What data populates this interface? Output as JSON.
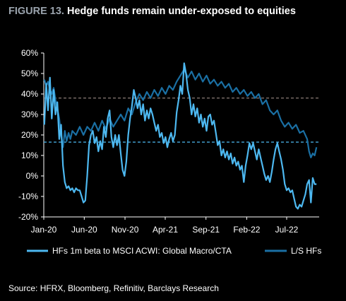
{
  "header": {
    "figure_label": "FIGURE 13.",
    "title": "Hedge funds remain under-exposed to equities"
  },
  "source": "Source: HFRX, Bloomberg, Refinitiv, Barclays Research",
  "colors": {
    "background": "#000000",
    "macro_series": "#4db8f0",
    "ls_series": "#1a6fa3",
    "macro_avg_line": "#4db8f0",
    "ls_avg_line": "#9b8b84",
    "axis": "#ffffff"
  },
  "chart_data": {
    "type": "line",
    "title": "Hedge funds remain under-exposed to equities",
    "xlabel": "",
    "ylabel": "",
    "ylim": [
      -0.2,
      0.6
    ],
    "y_ticks": [
      -0.2,
      -0.1,
      0.0,
      0.1,
      0.2,
      0.3,
      0.4,
      0.5,
      0.6
    ],
    "y_tick_labels": [
      "-20%",
      "-10%",
      "0%",
      "10%",
      "20%",
      "30%",
      "40%",
      "50%",
      "60%"
    ],
    "x_range": [
      "2020-01-01",
      "2022-10-31"
    ],
    "x_ticks": [
      "2020-01-01",
      "2020-06-01",
      "2020-11-01",
      "2021-04-01",
      "2021-09-01",
      "2022-02-01",
      "2022-07-01"
    ],
    "x_tick_labels": [
      "Jan-20",
      "Jun-20",
      "Nov-20",
      "Apr-21",
      "Sep-21",
      "Feb-22",
      "Jul-22"
    ],
    "grid": false,
    "legend": "bottom",
    "reference_lines": [
      {
        "value": 0.38,
        "style": "dashed",
        "color": "#9b8b84"
      },
      {
        "value": 0.165,
        "style": "dashed",
        "color": "#4db8f0"
      }
    ],
    "series": [
      {
        "name": "HFs 1m beta to MSCI ACWI: Global Macro/CTA",
        "color": "#4db8f0",
        "points": [
          [
            "2020-01-03",
            0.25
          ],
          [
            "2020-01-10",
            0.45
          ],
          [
            "2020-01-17",
            0.32
          ],
          [
            "2020-01-24",
            0.48
          ],
          [
            "2020-01-31",
            0.28
          ],
          [
            "2020-02-07",
            0.42
          ],
          [
            "2020-02-14",
            0.3
          ],
          [
            "2020-02-21",
            0.36
          ],
          [
            "2020-02-28",
            0.18
          ],
          [
            "2020-03-06",
            0.25
          ],
          [
            "2020-03-13",
            0.05
          ],
          [
            "2020-03-20",
            -0.03
          ],
          [
            "2020-03-27",
            -0.06
          ],
          [
            "2020-04-03",
            -0.05
          ],
          [
            "2020-04-10",
            -0.07
          ],
          [
            "2020-04-17",
            -0.06
          ],
          [
            "2020-04-24",
            -0.08
          ],
          [
            "2020-05-01",
            -0.06
          ],
          [
            "2020-05-08",
            -0.07
          ],
          [
            "2020-05-15",
            -0.07
          ],
          [
            "2020-05-22",
            -0.1
          ],
          [
            "2020-05-29",
            -0.13
          ],
          [
            "2020-06-05",
            -0.12
          ],
          [
            "2020-06-12",
            0.0
          ],
          [
            "2020-06-19",
            0.15
          ],
          [
            "2020-06-26",
            0.2
          ],
          [
            "2020-07-03",
            0.22
          ],
          [
            "2020-07-10",
            0.16
          ],
          [
            "2020-07-17",
            0.19
          ],
          [
            "2020-07-24",
            0.12
          ],
          [
            "2020-07-31",
            0.17
          ],
          [
            "2020-08-07",
            0.13
          ],
          [
            "2020-08-14",
            0.24
          ],
          [
            "2020-08-21",
            0.19
          ],
          [
            "2020-08-28",
            0.28
          ],
          [
            "2020-09-04",
            0.32
          ],
          [
            "2020-09-11",
            0.19
          ],
          [
            "2020-09-18",
            0.14
          ],
          [
            "2020-09-25",
            0.2
          ],
          [
            "2020-10-02",
            0.15
          ],
          [
            "2020-10-09",
            0.2
          ],
          [
            "2020-10-16",
            0.11
          ],
          [
            "2020-10-23",
            0.03
          ],
          [
            "2020-10-30",
            0.0
          ],
          [
            "2020-11-06",
            0.07
          ],
          [
            "2020-11-13",
            0.2
          ],
          [
            "2020-11-20",
            0.28
          ],
          [
            "2020-11-27",
            0.34
          ],
          [
            "2020-12-04",
            0.42
          ],
          [
            "2020-12-11",
            0.38
          ],
          [
            "2020-12-18",
            0.33
          ],
          [
            "2020-12-25",
            0.37
          ],
          [
            "2021-01-01",
            0.3
          ],
          [
            "2021-01-08",
            0.35
          ],
          [
            "2021-01-15",
            0.27
          ],
          [
            "2021-01-22",
            0.32
          ],
          [
            "2021-01-29",
            0.28
          ],
          [
            "2021-02-05",
            0.33
          ],
          [
            "2021-02-12",
            0.3
          ],
          [
            "2021-02-19",
            0.26
          ],
          [
            "2021-02-26",
            0.22
          ],
          [
            "2021-03-05",
            0.25
          ],
          [
            "2021-03-12",
            0.19
          ],
          [
            "2021-03-19",
            0.21
          ],
          [
            "2021-03-26",
            0.16
          ],
          [
            "2021-04-02",
            0.19
          ],
          [
            "2021-04-09",
            0.14
          ],
          [
            "2021-04-16",
            0.18
          ],
          [
            "2021-04-23",
            0.21
          ],
          [
            "2021-04-30",
            0.17
          ],
          [
            "2021-05-07",
            0.2
          ],
          [
            "2021-05-14",
            0.31
          ],
          [
            "2021-05-21",
            0.37
          ],
          [
            "2021-05-28",
            0.44
          ],
          [
            "2021-06-04",
            0.4
          ],
          [
            "2021-06-11",
            0.55
          ],
          [
            "2021-06-18",
            0.5
          ],
          [
            "2021-06-25",
            0.42
          ],
          [
            "2021-07-02",
            0.38
          ],
          [
            "2021-07-09",
            0.3
          ],
          [
            "2021-07-16",
            0.35
          ],
          [
            "2021-07-23",
            0.29
          ],
          [
            "2021-07-30",
            0.33
          ],
          [
            "2021-08-06",
            0.26
          ],
          [
            "2021-08-13",
            0.3
          ],
          [
            "2021-08-20",
            0.24
          ],
          [
            "2021-08-27",
            0.28
          ],
          [
            "2021-09-03",
            0.22
          ],
          [
            "2021-09-10",
            0.29
          ],
          [
            "2021-09-17",
            0.3
          ],
          [
            "2021-09-24",
            0.25
          ],
          [
            "2021-10-01",
            0.27
          ],
          [
            "2021-10-08",
            0.21
          ],
          [
            "2021-10-15",
            0.15
          ],
          [
            "2021-10-22",
            0.17
          ],
          [
            "2021-10-29",
            0.1
          ],
          [
            "2021-11-05",
            0.13
          ],
          [
            "2021-11-12",
            0.09
          ],
          [
            "2021-11-19",
            0.12
          ],
          [
            "2021-11-26",
            0.08
          ],
          [
            "2021-12-03",
            0.11
          ],
          [
            "2021-12-10",
            0.06
          ],
          [
            "2021-12-17",
            0.09
          ],
          [
            "2021-12-24",
            0.05
          ],
          [
            "2021-12-31",
            0.07
          ],
          [
            "2022-01-07",
            0.03
          ],
          [
            "2022-01-14",
            0.05
          ],
          [
            "2022-01-21",
            -0.03
          ],
          [
            "2022-01-28",
            0.05
          ],
          [
            "2022-02-04",
            0.1
          ],
          [
            "2022-02-11",
            0.16
          ],
          [
            "2022-02-18",
            0.13
          ],
          [
            "2022-02-25",
            0.16
          ],
          [
            "2022-03-04",
            0.12
          ],
          [
            "2022-03-11",
            0.08
          ],
          [
            "2022-03-18",
            0.13
          ],
          [
            "2022-03-25",
            0.09
          ],
          [
            "2022-04-01",
            0.05
          ],
          [
            "2022-04-08",
            0.01
          ],
          [
            "2022-04-15",
            -0.02
          ],
          [
            "2022-04-22",
            0.0
          ],
          [
            "2022-04-29",
            -0.03
          ],
          [
            "2022-05-06",
            0.02
          ],
          [
            "2022-05-13",
            0.08
          ],
          [
            "2022-05-20",
            0.13
          ],
          [
            "2022-05-27",
            0.16
          ],
          [
            "2022-06-03",
            0.12
          ],
          [
            "2022-06-10",
            0.08
          ],
          [
            "2022-06-17",
            0.03
          ],
          [
            "2022-06-24",
            -0.04
          ],
          [
            "2022-07-01",
            -0.07
          ],
          [
            "2022-07-08",
            -0.06
          ],
          [
            "2022-07-15",
            -0.08
          ],
          [
            "2022-07-22",
            -0.07
          ],
          [
            "2022-07-29",
            -0.11
          ],
          [
            "2022-08-05",
            -0.15
          ],
          [
            "2022-08-12",
            -0.16
          ],
          [
            "2022-08-19",
            -0.14
          ],
          [
            "2022-08-26",
            -0.15
          ],
          [
            "2022-09-02",
            -0.12
          ],
          [
            "2022-09-09",
            -0.09
          ],
          [
            "2022-09-16",
            -0.04
          ],
          [
            "2022-09-23",
            -0.02
          ],
          [
            "2022-09-30",
            -0.13
          ],
          [
            "2022-10-07",
            -0.01
          ],
          [
            "2022-10-14",
            -0.04
          ],
          [
            "2022-10-21",
            -0.04
          ]
        ]
      },
      {
        "name": "L/S HFs",
        "color": "#1a6fa3",
        "points": [
          [
            "2020-01-03",
            0.47
          ],
          [
            "2020-01-10",
            0.44
          ],
          [
            "2020-01-17",
            0.46
          ],
          [
            "2020-01-24",
            0.42
          ],
          [
            "2020-01-31",
            0.4
          ],
          [
            "2020-02-07",
            0.43
          ],
          [
            "2020-02-14",
            0.37
          ],
          [
            "2020-02-21",
            0.33
          ],
          [
            "2020-02-28",
            0.28
          ],
          [
            "2020-03-06",
            0.2
          ],
          [
            "2020-03-13",
            0.14
          ],
          [
            "2020-03-20",
            0.22
          ],
          [
            "2020-03-27",
            0.17
          ],
          [
            "2020-04-03",
            0.21
          ],
          [
            "2020-04-10",
            0.18
          ],
          [
            "2020-04-17",
            0.22
          ],
          [
            "2020-05-01",
            0.2
          ],
          [
            "2020-05-15",
            0.24
          ],
          [
            "2020-05-29",
            0.2
          ],
          [
            "2020-06-12",
            0.24
          ],
          [
            "2020-06-26",
            0.22
          ],
          [
            "2020-07-10",
            0.26
          ],
          [
            "2020-07-24",
            0.22
          ],
          [
            "2020-08-07",
            0.27
          ],
          [
            "2020-08-21",
            0.23
          ],
          [
            "2020-09-04",
            0.28
          ],
          [
            "2020-09-18",
            0.24
          ],
          [
            "2020-10-02",
            0.27
          ],
          [
            "2020-10-16",
            0.3
          ],
          [
            "2020-10-30",
            0.27
          ],
          [
            "2020-11-13",
            0.33
          ],
          [
            "2020-11-27",
            0.3
          ],
          [
            "2020-12-11",
            0.36
          ],
          [
            "2020-12-25",
            0.4
          ],
          [
            "2021-01-08",
            0.37
          ],
          [
            "2021-01-22",
            0.41
          ],
          [
            "2021-02-05",
            0.38
          ],
          [
            "2021-02-19",
            0.42
          ],
          [
            "2021-03-05",
            0.39
          ],
          [
            "2021-03-19",
            0.43
          ],
          [
            "2021-04-02",
            0.4
          ],
          [
            "2021-04-16",
            0.44
          ],
          [
            "2021-04-30",
            0.42
          ],
          [
            "2021-05-14",
            0.46
          ],
          [
            "2021-05-28",
            0.49
          ],
          [
            "2021-06-11",
            0.52
          ],
          [
            "2021-06-25",
            0.48
          ],
          [
            "2021-07-09",
            0.51
          ],
          [
            "2021-07-23",
            0.47
          ],
          [
            "2021-08-06",
            0.5
          ],
          [
            "2021-08-20",
            0.46
          ],
          [
            "2021-09-03",
            0.49
          ],
          [
            "2021-09-17",
            0.45
          ],
          [
            "2021-10-01",
            0.47
          ],
          [
            "2021-10-15",
            0.44
          ],
          [
            "2021-10-29",
            0.46
          ],
          [
            "2021-11-12",
            0.43
          ],
          [
            "2021-11-26",
            0.45
          ],
          [
            "2021-12-10",
            0.41
          ],
          [
            "2021-12-24",
            0.43
          ],
          [
            "2022-01-07",
            0.4
          ],
          [
            "2022-01-21",
            0.42
          ],
          [
            "2022-02-04",
            0.39
          ],
          [
            "2022-02-18",
            0.41
          ],
          [
            "2022-03-04",
            0.38
          ],
          [
            "2022-03-18",
            0.4
          ],
          [
            "2022-04-01",
            0.35
          ],
          [
            "2022-04-15",
            0.37
          ],
          [
            "2022-04-29",
            0.32
          ],
          [
            "2022-05-13",
            0.3
          ],
          [
            "2022-05-27",
            0.32
          ],
          [
            "2022-06-10",
            0.27
          ],
          [
            "2022-06-24",
            0.24
          ],
          [
            "2022-07-08",
            0.26
          ],
          [
            "2022-07-22",
            0.23
          ],
          [
            "2022-08-05",
            0.25
          ],
          [
            "2022-08-19",
            0.21
          ],
          [
            "2022-09-02",
            0.22
          ],
          [
            "2022-09-16",
            0.18
          ],
          [
            "2022-09-23",
            0.12
          ],
          [
            "2022-09-30",
            0.09
          ],
          [
            "2022-10-07",
            0.11
          ],
          [
            "2022-10-14",
            0.1
          ],
          [
            "2022-10-21",
            0.14
          ]
        ]
      }
    ]
  }
}
